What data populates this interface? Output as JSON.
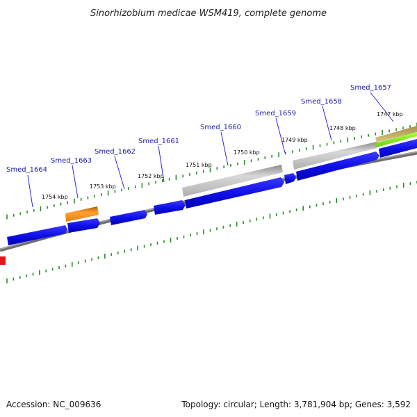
{
  "title": "Sinorhizobium medicae WSM419, complete genome",
  "footer": {
    "accession": "Accession: NC_009636",
    "summary": "Topology: circular; Length: 3,781,904 bp; Genes: 3,592"
  },
  "colors": {
    "cds_forward": "#1414e6",
    "gene_gray": "#b8b8b8",
    "gene_orange": "#f08c14",
    "gene_green": "#8ce628",
    "gene_olive": "#c8b464",
    "gene_red": "#e61414",
    "backbone": "#808080",
    "ticks": "#2a8a2a",
    "label_link": "#1a1aa8"
  },
  "gene_labels": [
    "Smed_1664",
    "Smed_1663",
    "Smed_1662",
    "Smed_1661",
    "Smed_1660",
    "Smed_1659",
    "Smed_1658",
    "Smed_1657"
  ],
  "kbp_labels": [
    "1754 kbp",
    "1753 kbp",
    "1752 kbp",
    "1751 kbp",
    "1750 kbp",
    "1749 kbp",
    "1748 kbp",
    "1747 kbp"
  ]
}
